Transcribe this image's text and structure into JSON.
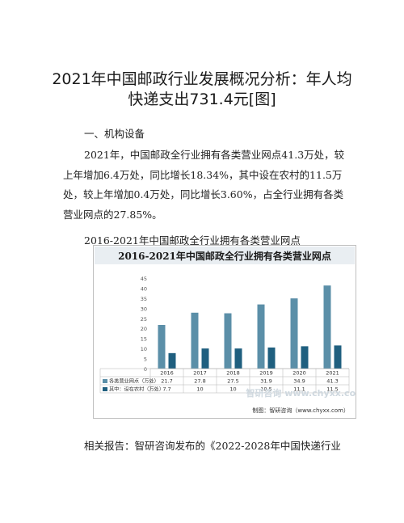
{
  "document": {
    "title_line1": "2021年中国邮政行业发展概况分析：年人均",
    "title_line2": "快递支出731.4元[图]",
    "section_heading": "一、机构设备",
    "body_paragraph": "2021年，中国邮政全行业拥有各类营业网点41.3万处，较上年增加6.4万处，同比增长18.34%，其中设在农村的11.5万处，较上年增加0.4万处，同比增长3.60%，占全行业拥有各类营业网点的27.85%。",
    "figure_caption": "2016-2021年中国邮政全行业拥有各类营业网点",
    "related_text": "相关报告：智研咨询发布的《2022-2028年中国快递行业"
  },
  "chart_data": {
    "type": "bar",
    "title": "2016-2021年中国邮政全行业拥有各类营业网点",
    "categories": [
      "2016",
      "2017",
      "2018",
      "2019",
      "2020",
      "2021"
    ],
    "series": [
      {
        "name": "各类营业网点（万处）",
        "values": [
          21.7,
          27.8,
          27.5,
          31.9,
          34.9,
          41.3
        ],
        "color": "#5b8fa8"
      },
      {
        "name": "其中：设在农村（万处）",
        "values": [
          7.7,
          10,
          10,
          10.5,
          11.1,
          11.5
        ],
        "color": "#1f5f7f"
      }
    ],
    "ylim": [
      0,
      45
    ],
    "yticks": [
      0,
      5,
      10,
      15,
      20,
      25,
      30,
      35,
      40,
      45
    ],
    "grid": false,
    "legend": "data-table-below",
    "source": "制图：智研咨询（www.chyxx.com）",
    "watermark": "智研咨询 www.chyxx.com"
  }
}
